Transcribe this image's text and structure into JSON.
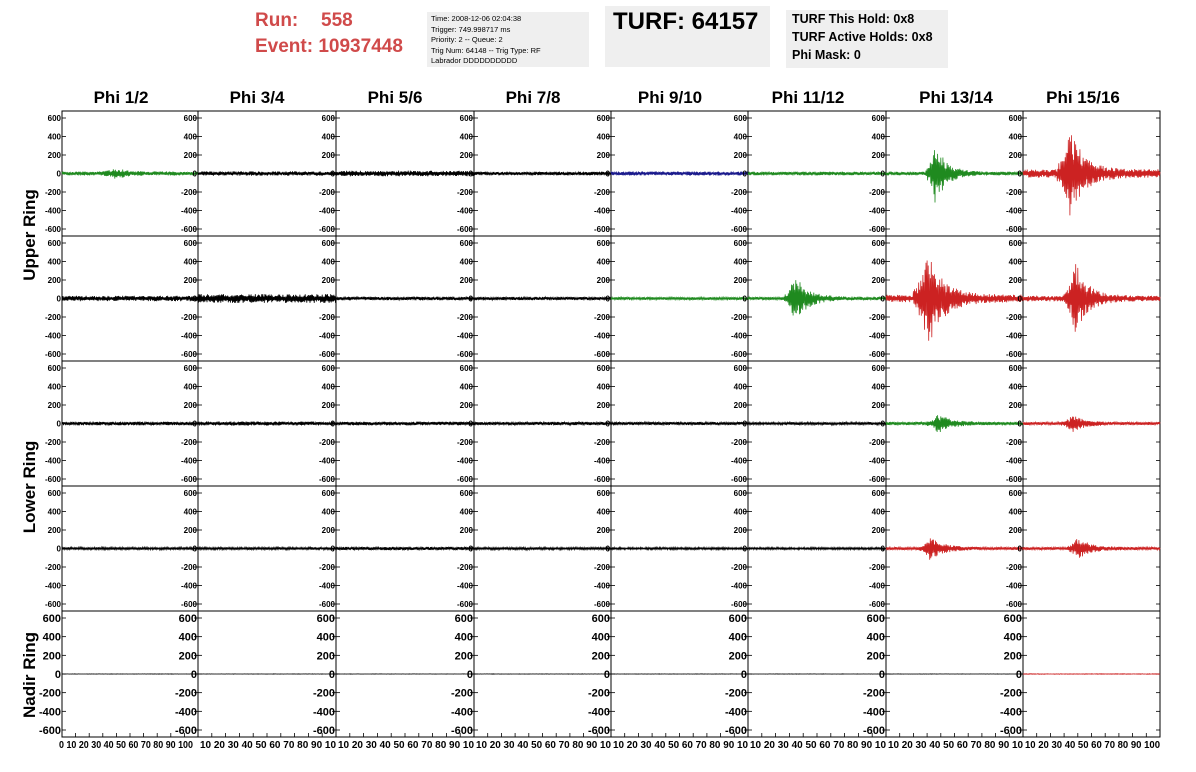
{
  "header": {
    "run_label": "Run:",
    "run_value": "558",
    "event_label": "Event:",
    "event_value": "10937448",
    "info_lines": [
      "Time: 2008-12-06 02:04:38",
      "Trigger: 749.998717 ms",
      "Priority: 2 -- Queue: 2",
      "Trig Num: 64148 -- Trig Type: RF",
      "Labrador DDDDDDDDDD"
    ],
    "turf": "TURF: 64157",
    "turf_lines": [
      "TURF This Hold: 0x8",
      "TURF Active Holds: 0x8",
      "Phi Mask: 0"
    ]
  },
  "columns": [
    "Phi 1/2",
    "Phi 3/4",
    "Phi 5/6",
    "Phi 7/8",
    "Phi 9/10",
    "Phi 11/12",
    "Phi 13/14",
    "Phi 15/16"
  ],
  "rings": [
    "Upper Ring",
    "Lower Ring",
    "Nadir Ring"
  ],
  "colors": {
    "black": "#000000",
    "green": "#1f8a1f",
    "blue": "#1a1a8c",
    "red": "#cc2222",
    "runinfo": "#d04a4a",
    "infobox": "#efefef"
  },
  "chart_data": {
    "type": "line",
    "description_grid": "5 rows x 8 columns of waveform panels; rows 1-2 Upper Ring, rows 3-4 Lower Ring, row 5 Nadir Ring",
    "xlim": [
      0,
      100
    ],
    "ylim": [
      -600,
      600
    ],
    "y_ticks": [
      -600,
      -400,
      -200,
      0,
      200,
      400,
      600
    ],
    "x_tick_labels": [
      "0",
      "10",
      "20",
      "30",
      "40",
      "50",
      "60",
      "70",
      "80",
      "90",
      "100"
    ],
    "x_tick_label_text": [
      "0 10 20 30 40 50 60 70 80 90 100",
      "10 20 30 40 50 60 70 80 90 10",
      "10 20 30 40 50 60 70 80 90 100"
    ],
    "panels": [
      [
        {
          "color": "green",
          "noise": 22,
          "burst_center": 38,
          "burst_amp": 45,
          "burst_width": 8
        },
        {
          "color": "black",
          "noise": 24,
          "burst_center": 0,
          "burst_amp": 0,
          "burst_width": 1
        },
        {
          "color": "black",
          "noise": 30,
          "burst_center": 0,
          "burst_amp": 0,
          "burst_width": 1
        },
        {
          "color": "black",
          "noise": 20,
          "burst_center": 0,
          "burst_amp": 0,
          "burst_width": 1
        },
        {
          "color": "blue",
          "noise": 22,
          "burst_center": 0,
          "burst_amp": 0,
          "burst_width": 1
        },
        {
          "color": "green",
          "noise": 20,
          "burst_center": 0,
          "burst_amp": 0,
          "burst_width": 1
        },
        {
          "color": "green",
          "noise": 20,
          "burst_center": 36,
          "burst_amp": 330,
          "burst_width": 7
        },
        {
          "color": "red",
          "noise": 45,
          "burst_center": 34,
          "burst_amp": 460,
          "burst_width": 9
        }
      ],
      [
        {
          "color": "black",
          "noise": 30,
          "burst_center": 0,
          "burst_amp": 0,
          "burst_width": 1
        },
        {
          "color": "black",
          "noise": 48,
          "burst_center": 0,
          "burst_amp": 0,
          "burst_width": 1
        },
        {
          "color": "black",
          "noise": 20,
          "burst_center": 0,
          "burst_amp": 0,
          "burst_width": 1
        },
        {
          "color": "black",
          "noise": 18,
          "burst_center": 0,
          "burst_amp": 0,
          "burst_width": 1
        },
        {
          "color": "green",
          "noise": 16,
          "burst_center": 0,
          "burst_amp": 0,
          "burst_width": 1
        },
        {
          "color": "green",
          "noise": 18,
          "burst_center": 34,
          "burst_amp": 260,
          "burst_width": 8
        },
        {
          "color": "red",
          "noise": 40,
          "burst_center": 30,
          "burst_amp": 520,
          "burst_width": 10
        },
        {
          "color": "red",
          "noise": 30,
          "burst_center": 38,
          "burst_amp": 380,
          "burst_width": 8
        }
      ],
      [
        {
          "color": "black",
          "noise": 20,
          "burst_center": 0,
          "burst_amp": 0,
          "burst_width": 1
        },
        {
          "color": "black",
          "noise": 22,
          "burst_center": 0,
          "burst_amp": 0,
          "burst_width": 1
        },
        {
          "color": "black",
          "noise": 20,
          "burst_center": 0,
          "burst_amp": 0,
          "burst_width": 1
        },
        {
          "color": "black",
          "noise": 18,
          "burst_center": 0,
          "burst_amp": 0,
          "burst_width": 1
        },
        {
          "color": "black",
          "noise": 18,
          "burst_center": 0,
          "burst_amp": 0,
          "burst_width": 1
        },
        {
          "color": "black",
          "noise": 15,
          "burst_center": 0,
          "burst_amp": 0,
          "burst_width": 1
        },
        {
          "color": "green",
          "noise": 18,
          "burst_center": 38,
          "burst_amp": 90,
          "burst_width": 8
        },
        {
          "color": "red",
          "noise": 16,
          "burst_center": 36,
          "burst_amp": 80,
          "burst_width": 8
        }
      ],
      [
        {
          "color": "black",
          "noise": 14,
          "burst_center": 0,
          "burst_amp": 0,
          "burst_width": 1
        },
        {
          "color": "black",
          "noise": 14,
          "burst_center": 0,
          "burst_amp": 0,
          "burst_width": 1
        },
        {
          "color": "black",
          "noise": 18,
          "burst_center": 0,
          "burst_amp": 0,
          "burst_width": 1
        },
        {
          "color": "black",
          "noise": 14,
          "burst_center": 0,
          "burst_amp": 0,
          "burst_width": 1
        },
        {
          "color": "black",
          "noise": 12,
          "burst_center": 0,
          "burst_amp": 0,
          "burst_width": 1
        },
        {
          "color": "black",
          "noise": 12,
          "burst_center": 0,
          "burst_amp": 0,
          "burst_width": 1
        },
        {
          "color": "red",
          "noise": 16,
          "burst_center": 32,
          "burst_amp": 120,
          "burst_width": 8
        },
        {
          "color": "red",
          "noise": 16,
          "burst_center": 40,
          "burst_amp": 110,
          "burst_width": 8
        }
      ],
      [
        {
          "color": "black",
          "noise": 2,
          "burst_center": 0,
          "burst_amp": 0,
          "burst_width": 1
        },
        {
          "color": "black",
          "noise": 2,
          "burst_center": 0,
          "burst_amp": 0,
          "burst_width": 1
        },
        {
          "color": "black",
          "noise": 2,
          "burst_center": 0,
          "burst_amp": 0,
          "burst_width": 1
        },
        {
          "color": "black",
          "noise": 2,
          "burst_center": 0,
          "burst_amp": 0,
          "burst_width": 1
        },
        {
          "color": "black",
          "noise": 2,
          "burst_center": 0,
          "burst_amp": 0,
          "burst_width": 1
        },
        {
          "color": "black",
          "noise": 2,
          "burst_center": 0,
          "burst_amp": 0,
          "burst_width": 1
        },
        {
          "color": "black",
          "noise": 2,
          "burst_center": 0,
          "burst_amp": 0,
          "burst_width": 1
        },
        {
          "color": "red",
          "noise": 3,
          "burst_center": 0,
          "burst_amp": 0,
          "burst_width": 1
        }
      ]
    ]
  }
}
